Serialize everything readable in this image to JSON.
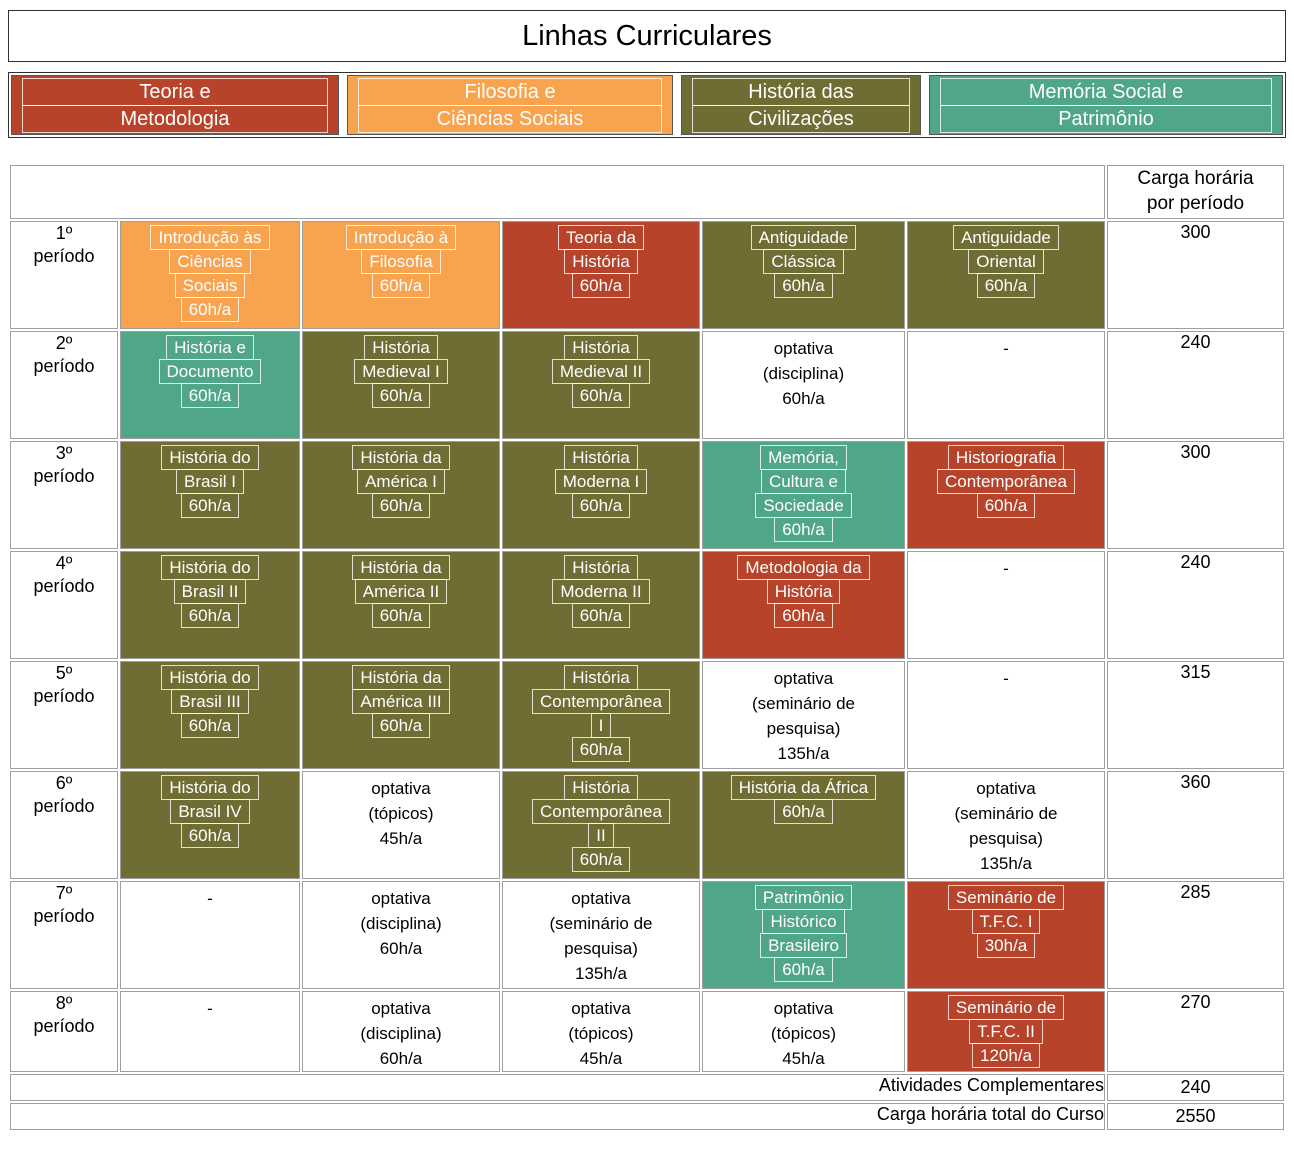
{
  "page": {
    "title": "Linhas Curriculares"
  },
  "legend": {
    "items": [
      {
        "id": "teoria-metodologia",
        "color": "#B7432A",
        "lines": [
          "Teoria e",
          "Metodologia"
        ]
      },
      {
        "id": "filosofia-ciencias-sociais",
        "color": "#F8A34E",
        "lines": [
          "Filosofia e",
          "Ciências Sociais"
        ]
      },
      {
        "id": "historia-civilizacoes",
        "color": "#6F6D33",
        "lines": [
          "História das",
          "Civilizações"
        ]
      },
      {
        "id": "memoria-social-patrimonio",
        "color": "#4FA787",
        "lines": [
          "Memória Social e",
          "Patrimônio"
        ]
      }
    ]
  },
  "workload_header": {
    "lines": [
      "Carga horária",
      "por período"
    ]
  },
  "grid": {
    "rows": [
      {
        "period": {
          "lines": [
            "1º",
            "período"
          ]
        },
        "total": "300",
        "cells": [
          {
            "category": "filosofia-ciencias-sociais",
            "color": "orange",
            "lines": [
              "Introdução às",
              "Ciências",
              "Sociais",
              "60h/a"
            ]
          },
          {
            "category": "filosofia-ciencias-sociais",
            "color": "orange",
            "lines": [
              "Introdução à",
              "Filosofia",
              "60h/a"
            ]
          },
          {
            "category": "teoria-metodologia",
            "color": "red",
            "lines": [
              "Teoria da",
              "História",
              "60h/a"
            ]
          },
          {
            "category": "historia-civilizacoes",
            "color": "olive",
            "lines": [
              "Antiguidade",
              "Clássica",
              "60h/a"
            ]
          },
          {
            "category": "historia-civilizacoes",
            "color": "olive",
            "lines": [
              "Antiguidade",
              "Oriental",
              "60h/a"
            ]
          }
        ]
      },
      {
        "period": {
          "lines": [
            "2º",
            "período"
          ]
        },
        "total": "240",
        "cells": [
          {
            "category": "memoria-social-patrimonio",
            "color": "teal",
            "lines": [
              "História e",
              "Documento",
              "60h/a"
            ]
          },
          {
            "category": "historia-civilizacoes",
            "color": "olive",
            "lines": [
              "História",
              "Medieval I",
              "60h/a"
            ]
          },
          {
            "category": "historia-civilizacoes",
            "color": "olive",
            "lines": [
              "História",
              "Medieval II",
              "60h/a"
            ]
          },
          {
            "category": "optativa",
            "color": "white",
            "lines": [
              "optativa",
              "(disciplina)",
              "60h/a"
            ]
          },
          {
            "category": "none",
            "color": "white",
            "lines": [
              "-"
            ]
          }
        ]
      },
      {
        "period": {
          "lines": [
            "3º",
            "período"
          ]
        },
        "total": "300",
        "cells": [
          {
            "category": "historia-civilizacoes",
            "color": "olive",
            "lines": [
              "História do",
              "Brasil I",
              "60h/a"
            ]
          },
          {
            "category": "historia-civilizacoes",
            "color": "olive",
            "lines": [
              "História da",
              "América I",
              "60h/a"
            ]
          },
          {
            "category": "historia-civilizacoes",
            "color": "olive",
            "lines": [
              "História",
              "Moderna I",
              "60h/a"
            ]
          },
          {
            "category": "memoria-social-patrimonio",
            "color": "teal",
            "lines": [
              "Memória,",
              "Cultura e",
              "Sociedade",
              "60h/a"
            ]
          },
          {
            "category": "teoria-metodologia",
            "color": "red",
            "lines": [
              "Historiografia",
              "Contemporânea",
              "60h/a"
            ]
          }
        ]
      },
      {
        "period": {
          "lines": [
            "4º",
            "período"
          ]
        },
        "total": "240",
        "cells": [
          {
            "category": "historia-civilizacoes",
            "color": "olive",
            "lines": [
              "História do",
              "Brasil II",
              "60h/a"
            ]
          },
          {
            "category": "historia-civilizacoes",
            "color": "olive",
            "lines": [
              "História da",
              "América II",
              "60h/a"
            ]
          },
          {
            "category": "historia-civilizacoes",
            "color": "olive",
            "lines": [
              "História",
              "Moderna II",
              "60h/a"
            ]
          },
          {
            "category": "teoria-metodologia",
            "color": "red",
            "lines": [
              "Metodologia da",
              "História",
              "60h/a"
            ]
          },
          {
            "category": "none",
            "color": "white",
            "lines": [
              "-"
            ]
          }
        ]
      },
      {
        "period": {
          "lines": [
            "5º",
            "período"
          ]
        },
        "total": "315",
        "cells": [
          {
            "category": "historia-civilizacoes",
            "color": "olive",
            "lines": [
              "História do",
              "Brasil III",
              "60h/a"
            ]
          },
          {
            "category": "historia-civilizacoes",
            "color": "olive",
            "lines": [
              "História da",
              "América III",
              "60h/a"
            ]
          },
          {
            "category": "historia-civilizacoes",
            "color": "olive",
            "lines": [
              "História",
              "Contemporânea",
              "I",
              "60h/a"
            ]
          },
          {
            "category": "optativa",
            "color": "white",
            "lines": [
              "optativa",
              "(seminário de",
              "pesquisa)",
              "135h/a"
            ]
          },
          {
            "category": "none",
            "color": "white",
            "lines": [
              "-"
            ]
          }
        ]
      },
      {
        "period": {
          "lines": [
            "6º",
            "período"
          ]
        },
        "total": "360",
        "cells": [
          {
            "category": "historia-civilizacoes",
            "color": "olive",
            "lines": [
              "História do",
              "Brasil IV",
              "60h/a"
            ]
          },
          {
            "category": "optativa",
            "color": "white",
            "lines": [
              "optativa",
              "(tópicos)",
              "45h/a"
            ]
          },
          {
            "category": "historia-civilizacoes",
            "color": "olive",
            "lines": [
              "História",
              "Contemporânea",
              "II",
              "60h/a"
            ]
          },
          {
            "category": "historia-civilizacoes",
            "color": "olive",
            "lines": [
              "História da África",
              "60h/a"
            ]
          },
          {
            "category": "optativa",
            "color": "white",
            "lines": [
              "optativa",
              "(seminário de",
              "pesquisa)",
              "135h/a"
            ]
          }
        ]
      },
      {
        "period": {
          "lines": [
            "7º",
            "período"
          ]
        },
        "total": "285",
        "cells": [
          {
            "category": "none",
            "color": "white",
            "lines": [
              "-"
            ]
          },
          {
            "category": "optativa",
            "color": "white",
            "lines": [
              "optativa",
              "(disciplina)",
              "60h/a"
            ]
          },
          {
            "category": "optativa",
            "color": "white",
            "lines": [
              "optativa",
              "(seminário de",
              "pesquisa)",
              "135h/a"
            ]
          },
          {
            "category": "memoria-social-patrimonio",
            "color": "teal",
            "lines": [
              "Patrimônio",
              "Histórico",
              "Brasileiro",
              "60h/a"
            ]
          },
          {
            "category": "teoria-metodologia",
            "color": "red",
            "lines": [
              "Seminário de",
              "T.F.C. I",
              "30h/a"
            ]
          }
        ]
      },
      {
        "period": {
          "lines": [
            "8º",
            "período"
          ]
        },
        "total": "270",
        "cells": [
          {
            "category": "none",
            "color": "white",
            "lines": [
              "-"
            ]
          },
          {
            "category": "optativa",
            "color": "white",
            "lines": [
              "optativa",
              "(disciplina)",
              "60h/a"
            ]
          },
          {
            "category": "optativa",
            "color": "white",
            "lines": [
              "optativa",
              "(tópicos)",
              "45h/a"
            ]
          },
          {
            "category": "optativa",
            "color": "white",
            "lines": [
              "optativa",
              "(tópicos)",
              "45h/a"
            ]
          },
          {
            "category": "teoria-metodologia",
            "color": "red",
            "lines": [
              "Seminário de",
              "T.F.C. II",
              "120h/a"
            ]
          }
        ]
      }
    ]
  },
  "footer": {
    "rows": [
      {
        "label": "Atividades Complementares",
        "value": "240"
      },
      {
        "label": "Carga horária total do Curso",
        "value": "2550"
      }
    ]
  },
  "colors": {
    "red": "#B7432A",
    "orange": "#F8A34E",
    "olive": "#6F6D33",
    "teal": "#4FA787",
    "border_gray": "#9F9F9F"
  }
}
